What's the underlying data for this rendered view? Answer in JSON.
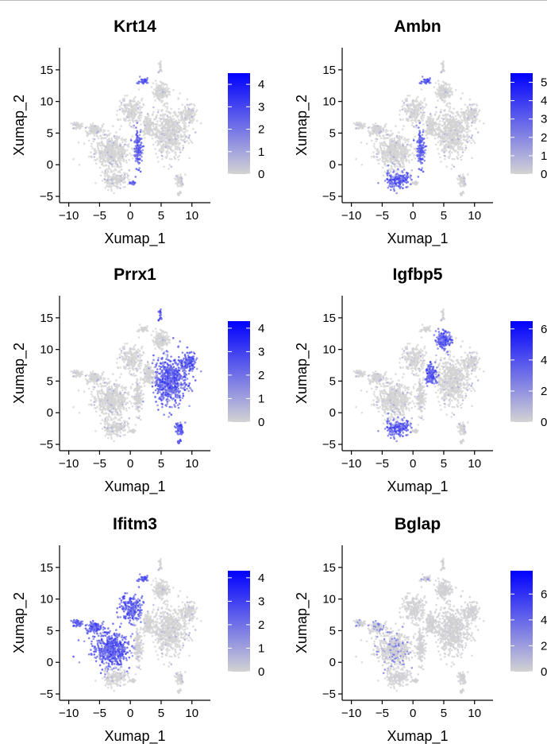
{
  "chart_data": [
    {
      "type": "scatter",
      "title": "Krt14",
      "xlabel": "Xumap_1",
      "ylabel": "Xumap_2",
      "xticks": [
        -10,
        -5,
        0,
        5,
        10
      ],
      "yticks": [
        -5,
        0,
        5,
        10,
        15
      ],
      "colorbar": {
        "min": 0,
        "max": 4.5,
        "ticks": [
          0,
          1,
          2,
          3,
          4
        ],
        "low_color": "#d3d3d3",
        "high_color": "#0000ff"
      },
      "high_regions": [
        "dental-epithelium",
        "inner-tip",
        "upper-loop"
      ]
    },
    {
      "type": "scatter",
      "title": "Ambn",
      "xlabel": "Xumap_1",
      "ylabel": "Xumap_2",
      "xticks": [
        -10,
        -5,
        0,
        5,
        10
      ],
      "yticks": [
        -5,
        0,
        5,
        10,
        15
      ],
      "colorbar": {
        "min": 0,
        "max": 5.5,
        "ticks": [
          0,
          1,
          2,
          3,
          4,
          5
        ],
        "low_color": "#d3d3d3",
        "high_color": "#0000ff"
      },
      "high_regions": [
        "lower-left",
        "dental-epithelium",
        "upper-loop"
      ]
    },
    {
      "type": "scatter",
      "title": "Prrx1",
      "xlabel": "Xumap_1",
      "ylabel": "Xumap_2",
      "xticks": [
        -10,
        -5,
        0,
        5,
        10
      ],
      "yticks": [
        -5,
        0,
        5,
        10,
        15
      ],
      "colorbar": {
        "min": 0,
        "max": 4.3,
        "ticks": [
          0,
          1,
          2,
          3,
          4
        ],
        "low_color": "#d3d3d3",
        "high_color": "#0000ff"
      },
      "high_regions": [
        "right-mesenchyme",
        "top-stalk"
      ]
    },
    {
      "type": "scatter",
      "title": "Igfbp5",
      "xlabel": "Xumap_1",
      "ylabel": "Xumap_2",
      "xticks": [
        -10,
        -5,
        0,
        5,
        10
      ],
      "yticks": [
        -5,
        0,
        5,
        10,
        15
      ],
      "colorbar": {
        "min": 0,
        "max": 6.5,
        "ticks": [
          0,
          2,
          4,
          6
        ],
        "low_color": "#d3d3d3",
        "high_color": "#0000ff"
      },
      "high_regions": [
        "lower-left",
        "upper-right-arm",
        "central-band"
      ]
    },
    {
      "type": "scatter",
      "title": "Ifitm3",
      "xlabel": "Xumap_1",
      "ylabel": "Xumap_2",
      "xticks": [
        -10,
        -5,
        0,
        5,
        10
      ],
      "yticks": [
        -5,
        0,
        5,
        10,
        15
      ],
      "colorbar": {
        "min": 0,
        "max": 4.3,
        "ticks": [
          0,
          1,
          2,
          3,
          4
        ],
        "low_color": "#d3d3d3",
        "high_color": "#0000ff"
      },
      "high_regions": [
        "left-body",
        "upper-center",
        "upper-loop"
      ]
    },
    {
      "type": "scatter",
      "title": "Bglap",
      "xlabel": "Xumap_1",
      "ylabel": "Xumap_2",
      "xticks": [
        -10,
        -5,
        0,
        5,
        10
      ],
      "yticks": [
        -5,
        0,
        5,
        10,
        15
      ],
      "colorbar": {
        "min": 0,
        "max": 7.8,
        "ticks": [
          0,
          2,
          4,
          6
        ],
        "low_color": "#d3d3d3",
        "high_color": "#0000ff"
      },
      "high_regions": [
        "upper-loop-sparse"
      ]
    }
  ]
}
